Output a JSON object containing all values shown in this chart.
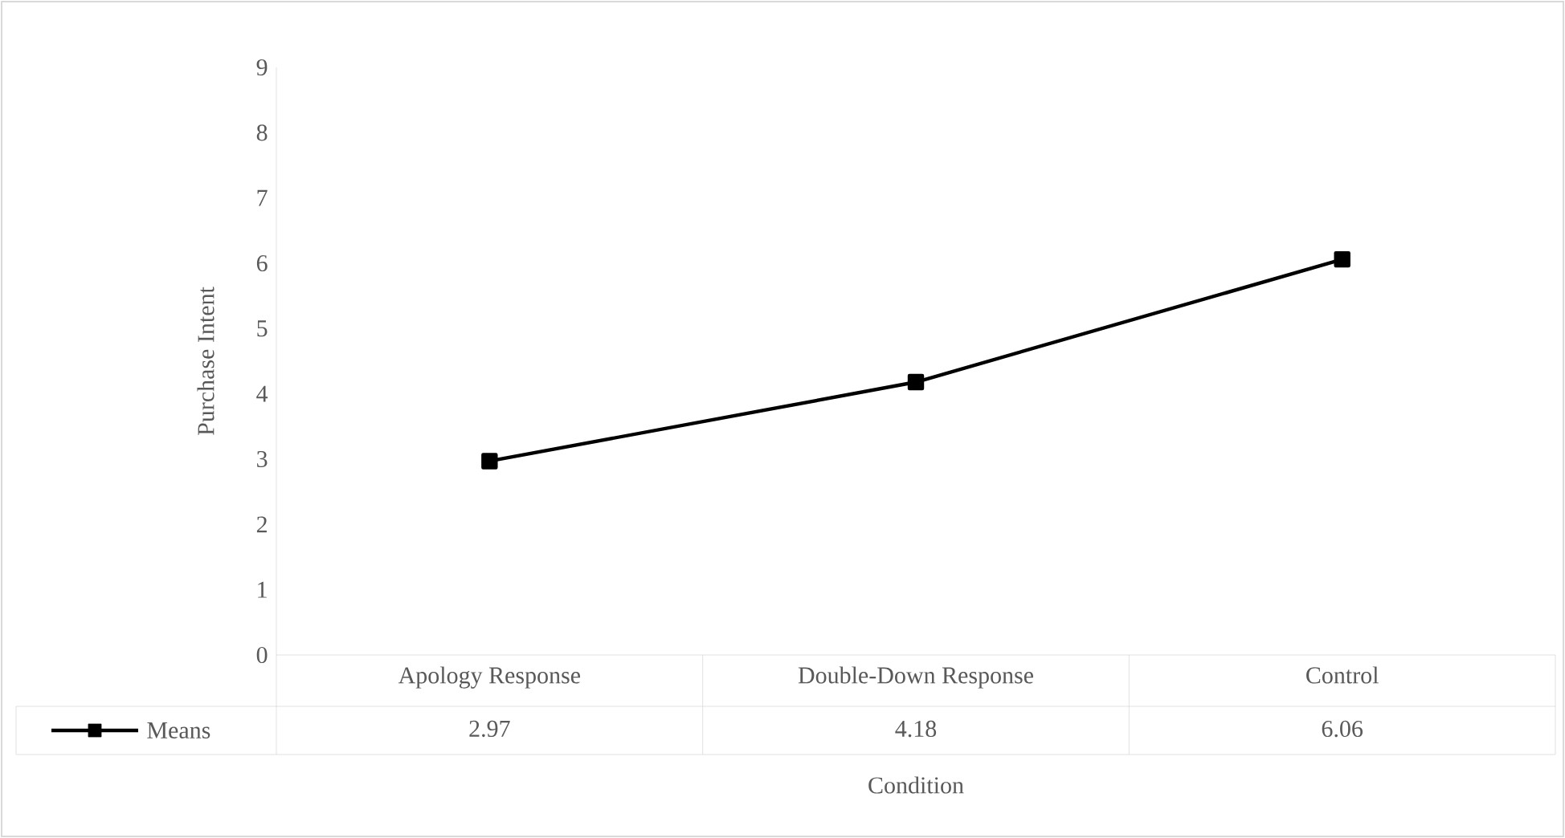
{
  "chart_data": {
    "type": "line",
    "xlabel": "Condition",
    "ylabel": "Purchase Intent",
    "categories": [
      "Apology Response",
      "Double-Down Response",
      "Control"
    ],
    "series": [
      {
        "name": "Means",
        "color": "#000000",
        "values": [
          2.97,
          4.18,
          6.06
        ]
      }
    ],
    "ylim": [
      0,
      9
    ],
    "yticks": [
      0,
      1,
      2,
      3,
      4,
      5,
      6,
      7,
      8,
      9
    ],
    "marker": "square",
    "line_style": "solid",
    "data_labels": true,
    "legend": "bottom",
    "grid": false
  }
}
